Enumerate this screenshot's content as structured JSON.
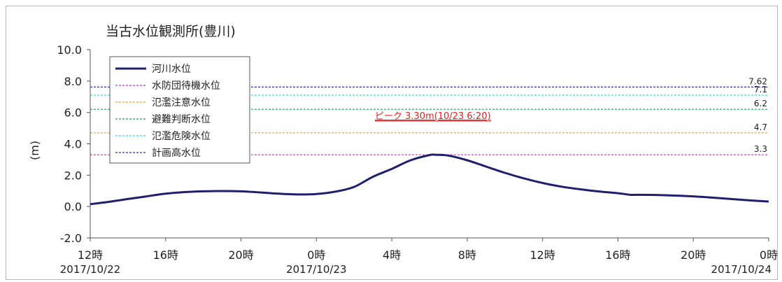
{
  "chart_data": {
    "type": "line",
    "title": "当古水位観測所(豊川)",
    "ylabel": "(m)",
    "xlabel": "",
    "ylim": [
      -2.0,
      10.0
    ],
    "yticks": [
      {
        "value": 10.0,
        "label": "10.0"
      },
      {
        "value": 8.0,
        "label": "8.0"
      },
      {
        "value": 6.0,
        "label": "6.0"
      },
      {
        "value": 4.0,
        "label": "4.0"
      },
      {
        "value": 2.0,
        "label": "2.0"
      },
      {
        "value": 0.0,
        "label": "0.0"
      },
      {
        "value": -2.0,
        "label": "-2.0"
      }
    ],
    "xlim": [
      "2017/10/22 12:00",
      "2017/10/24 00:00"
    ],
    "xticks": [
      {
        "time": "2017/10/22 12:00",
        "label": "12時",
        "date_label": "2017/10/22"
      },
      {
        "time": "2017/10/22 16:00",
        "label": "16時",
        "date_label": ""
      },
      {
        "time": "2017/10/22 20:00",
        "label": "20時",
        "date_label": ""
      },
      {
        "time": "2017/10/23 00:00",
        "label": "0時",
        "date_label": "2017/10/23"
      },
      {
        "time": "2017/10/23 04:00",
        "label": "4時",
        "date_label": ""
      },
      {
        "time": "2017/10/23 08:00",
        "label": "8時",
        "date_label": ""
      },
      {
        "time": "2017/10/23 12:00",
        "label": "12時",
        "date_label": ""
      },
      {
        "time": "2017/10/23 16:00",
        "label": "16時",
        "date_label": ""
      },
      {
        "time": "2017/10/23 20:00",
        "label": "20時",
        "date_label": ""
      },
      {
        "time": "2017/10/24 00:00",
        "label": "0時",
        "date_label": "2017/10/24"
      }
    ],
    "series": [
      {
        "name": "河川水位",
        "color": "#1f1f6e",
        "points": [
          {
            "time": "2017/10/22 12:00",
            "value": 0.15
          },
          {
            "time": "2017/10/22 13:00",
            "value": 0.3
          },
          {
            "time": "2017/10/22 14:00",
            "value": 0.48
          },
          {
            "time": "2017/10/22 15:00",
            "value": 0.65
          },
          {
            "time": "2017/10/22 16:00",
            "value": 0.82
          },
          {
            "time": "2017/10/22 17:00",
            "value": 0.92
          },
          {
            "time": "2017/10/22 18:00",
            "value": 0.97
          },
          {
            "time": "2017/10/22 19:00",
            "value": 0.99
          },
          {
            "time": "2017/10/22 20:00",
            "value": 0.97
          },
          {
            "time": "2017/10/22 21:00",
            "value": 0.9
          },
          {
            "time": "2017/10/22 22:00",
            "value": 0.82
          },
          {
            "time": "2017/10/22 23:00",
            "value": 0.77
          },
          {
            "time": "2017/10/23 00:00",
            "value": 0.8
          },
          {
            "time": "2017/10/23 01:00",
            "value": 0.95
          },
          {
            "time": "2017/10/23 02:00",
            "value": 1.25
          },
          {
            "time": "2017/10/23 03:00",
            "value": 1.9
          },
          {
            "time": "2017/10/23 04:00",
            "value": 2.4
          },
          {
            "time": "2017/10/23 05:00",
            "value": 2.95
          },
          {
            "time": "2017/10/23 06:00",
            "value": 3.28
          },
          {
            "time": "2017/10/23 06:20",
            "value": 3.3
          },
          {
            "time": "2017/10/23 07:00",
            "value": 3.25
          },
          {
            "time": "2017/10/23 08:00",
            "value": 2.95
          },
          {
            "time": "2017/10/23 09:00",
            "value": 2.55
          },
          {
            "time": "2017/10/23 10:00",
            "value": 2.15
          },
          {
            "time": "2017/10/23 11:00",
            "value": 1.8
          },
          {
            "time": "2017/10/23 12:00",
            "value": 1.5
          },
          {
            "time": "2017/10/23 13:00",
            "value": 1.27
          },
          {
            "time": "2017/10/23 14:00",
            "value": 1.1
          },
          {
            "time": "2017/10/23 15:00",
            "value": 0.96
          },
          {
            "time": "2017/10/23 16:00",
            "value": 0.85
          },
          {
            "time": "2017/10/23 16:40",
            "value": 0.75
          },
          {
            "time": "2017/10/23 17:00",
            "value": 0.75
          },
          {
            "time": "2017/10/23 18:00",
            "value": 0.74
          },
          {
            "time": "2017/10/23 19:00",
            "value": 0.7
          },
          {
            "time": "2017/10/23 20:00",
            "value": 0.65
          },
          {
            "time": "2017/10/23 21:00",
            "value": 0.57
          },
          {
            "time": "2017/10/23 22:00",
            "value": 0.48
          },
          {
            "time": "2017/10/23 23:00",
            "value": 0.39
          },
          {
            "time": "2017/10/24 00:00",
            "value": 0.32
          }
        ]
      }
    ],
    "thresholds": [
      {
        "name": "水防団待機水位",
        "value": 3.3,
        "label": "3.3",
        "color": "#e020e0"
      },
      {
        "name": "氾濫注意水位",
        "value": 4.7,
        "label": "4.7",
        "color": "#f0a020"
      },
      {
        "name": "避難判断水位",
        "value": 6.2,
        "label": "6.2",
        "color": "#20a050"
      },
      {
        "name": "氾濫危険水位",
        "value": 7.1,
        "label": "7.1",
        "color": "#30d8f0"
      },
      {
        "name": "計画高水位",
        "value": 7.62,
        "label": "7.62",
        "color": "#3030b0"
      }
    ],
    "annotation": {
      "text": "ピーク  3.30m(10/23 6:20)",
      "color": "#e02020"
    },
    "legend": {
      "position": "top-left",
      "entries": [
        {
          "name": "河川水位",
          "color": "#1f1f6e",
          "style": "solid"
        },
        {
          "name": "水防団待機水位",
          "color": "#e020e0",
          "style": "dashed"
        },
        {
          "name": "氾濫注意水位",
          "color": "#f0a020",
          "style": "dashed"
        },
        {
          "name": "避難判断水位",
          "color": "#20a050",
          "style": "dashed"
        },
        {
          "name": "氾濫危険水位",
          "color": "#30d8f0",
          "style": "dashed"
        },
        {
          "name": "計画高水位",
          "color": "#3030b0",
          "style": "dashed"
        }
      ]
    },
    "grid": false
  }
}
